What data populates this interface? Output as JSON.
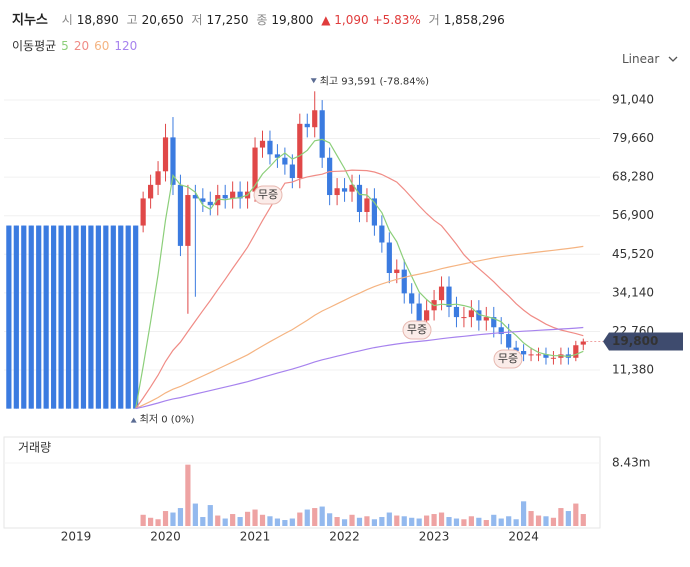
{
  "header": {
    "name": "지누스",
    "items": [
      {
        "label": "시",
        "value": "18,890"
      },
      {
        "label": "고",
        "value": "20,650"
      },
      {
        "label": "저",
        "value": "17,250"
      },
      {
        "label": "종",
        "value": "19,800"
      }
    ],
    "change": "▲ 1,090",
    "change_pct": "+5.83%",
    "volume_label": "거",
    "volume_value": "1,858,296"
  },
  "chart_data": {
    "type": "candlestick",
    "ma_title": "이동평균",
    "scale": "Linear",
    "volume_title": "거래량",
    "up_color": "#e04848",
    "down_color": "#3b7be0",
    "volume_up_color": "#eea3a3",
    "volume_down_color": "#93b9ee",
    "grid": true,
    "high_note": "최고 93,591 (-78.84%)",
    "low_note": "최저 0 (0%)",
    "notes": [
      "무증",
      "무증",
      "무증"
    ],
    "categories": [
      null,
      null,
      null,
      null,
      null,
      null,
      null,
      null,
      null,
      "2019",
      null,
      null,
      null,
      null,
      null,
      null,
      null,
      null,
      null,
      null,
      null,
      "2020",
      null,
      null,
      null,
      null,
      null,
      null,
      null,
      null,
      null,
      null,
      null,
      "2021",
      null,
      null,
      null,
      null,
      null,
      null,
      null,
      null,
      null,
      null,
      null,
      "2022",
      null,
      null,
      null,
      null,
      null,
      null,
      null,
      null,
      null,
      null,
      null,
      "2023",
      null,
      null,
      null,
      null,
      null,
      null,
      null,
      null,
      null,
      null,
      null,
      "2024",
      null,
      null,
      null,
      null,
      null,
      null,
      null,
      null
    ],
    "open": [
      54000,
      54000,
      54000,
      54000,
      54000,
      54000,
      54000,
      54000,
      54000,
      54000,
      54000,
      54000,
      54000,
      54000,
      54000,
      54000,
      54000,
      54000,
      54000,
      62000,
      66000,
      70000,
      80000,
      66000,
      48000,
      63000,
      62000,
      61000,
      60000,
      63000,
      62000,
      64000,
      62000,
      64000,
      77000,
      79000,
      75000,
      74000,
      72000,
      68000,
      84000,
      83000,
      88000,
      74000,
      63000,
      65000,
      64000,
      66000,
      58000,
      62000,
      54000,
      49000,
      40000,
      41000,
      34000,
      31000,
      26000,
      29000,
      32000,
      36000,
      30000,
      27000,
      27000,
      29000,
      26000,
      27000,
      24000,
      22000,
      18000,
      17000,
      16000,
      16000,
      16000,
      15000,
      15000,
      16000,
      15000,
      18890
    ],
    "high": [
      54000,
      54000,
      54000,
      54000,
      54000,
      54000,
      54000,
      54000,
      54000,
      54000,
      54000,
      54000,
      54000,
      54000,
      54000,
      54000,
      54000,
      54000,
      64000,
      69000,
      73000,
      84000,
      86000,
      69000,
      66000,
      66000,
      65000,
      64000,
      66000,
      66000,
      67000,
      67000,
      67000,
      80000,
      82000,
      82000,
      78000,
      77000,
      75000,
      87000,
      87000,
      93591,
      91000,
      77000,
      68000,
      68000,
      69000,
      69000,
      65000,
      65000,
      57000,
      52000,
      44000,
      44000,
      37000,
      34000,
      32000,
      35000,
      39000,
      39000,
      33000,
      30000,
      32000,
      32000,
      30000,
      30000,
      27000,
      25000,
      20000,
      19000,
      18000,
      18000,
      18000,
      17000,
      18000,
      18000,
      20000,
      20650
    ],
    "low": [
      0,
      0,
      0,
      0,
      0,
      0,
      0,
      0,
      0,
      0,
      0,
      0,
      0,
      0,
      0,
      0,
      0,
      0,
      52000,
      59000,
      63000,
      67000,
      63000,
      45000,
      28000,
      33000,
      58000,
      57000,
      57000,
      59000,
      59000,
      59000,
      59000,
      61000,
      74000,
      72000,
      71000,
      69000,
      65000,
      65000,
      80000,
      80000,
      71000,
      60000,
      60000,
      61000,
      61000,
      55000,
      55000,
      51000,
      46000,
      37000,
      37000,
      31000,
      28000,
      23000,
      23000,
      26000,
      29000,
      27000,
      24000,
      24000,
      24000,
      23000,
      23000,
      21000,
      19000,
      15000,
      15000,
      14000,
      14000,
      14000,
      13000,
      13000,
      13000,
      13000,
      14000,
      17250
    ],
    "close": [
      0,
      0,
      0,
      0,
      0,
      0,
      0,
      0,
      0,
      0,
      0,
      0,
      0,
      0,
      0,
      0,
      0,
      0,
      62000,
      66000,
      70000,
      80000,
      66000,
      48000,
      63000,
      62000,
      61000,
      60000,
      63000,
      62000,
      64000,
      62000,
      64000,
      77000,
      79000,
      75000,
      74000,
      72000,
      68000,
      84000,
      83000,
      88000,
      74000,
      63000,
      65000,
      64000,
      66000,
      58000,
      62000,
      54000,
      49000,
      40000,
      41000,
      34000,
      31000,
      26000,
      29000,
      32000,
      36000,
      30000,
      27000,
      27000,
      29000,
      26000,
      27000,
      24000,
      22000,
      18000,
      17000,
      16000,
      16000,
      16000,
      15000,
      15000,
      16000,
      15000,
      18700,
      19800
    ],
    "volume": [
      null,
      null,
      null,
      null,
      null,
      null,
      null,
      null,
      null,
      null,
      null,
      null,
      null,
      null,
      null,
      null,
      null,
      null,
      1500000,
      1100000,
      900000,
      2000000,
      1800000,
      2400000,
      8200000,
      3000000,
      1200000,
      2800000,
      1400000,
      1000000,
      1600000,
      1200000,
      1900000,
      2200000,
      1500000,
      1300000,
      1000000,
      800000,
      1000000,
      1800000,
      2200000,
      2400000,
      2600000,
      1700000,
      1200000,
      900000,
      1500000,
      1100000,
      1300000,
      900000,
      1200000,
      1800000,
      1400000,
      1300000,
      1100000,
      1000000,
      1400000,
      1600000,
      1800000,
      1200000,
      1000000,
      900000,
      1300000,
      1100000,
      800000,
      1500000,
      1000000,
      1300000,
      900000,
      3300000,
      2000000,
      1400000,
      1300000,
      1100000,
      2400000,
      2000000,
      3000000,
      1600000
    ],
    "series": [
      {
        "name": "5",
        "color": "#8ccf7a",
        "values": [
          null,
          null,
          null,
          null,
          null,
          null,
          null,
          null,
          null,
          null,
          null,
          null,
          null,
          null,
          null,
          null,
          null,
          0,
          12400,
          25600,
          39600,
          55600,
          68800,
          66000,
          65400,
          63800,
          60000,
          58800,
          61800,
          61600,
          62000,
          62200,
          63000,
          65800,
          69200,
          71400,
          73800,
          75400,
          73600,
          74600,
          76200,
          79000,
          79400,
          78400,
          74600,
          70800,
          66400,
          63200,
          63000,
          60800,
          57800,
          52600,
          49200,
          43600,
          39000,
          34400,
          32200,
          30400,
          30800,
          30600,
          30800,
          30400,
          29800,
          27800,
          27200,
          26600,
          25600,
          23400,
          21600,
          19400,
          17800,
          16600,
          16000,
          15600,
          15600,
          15400,
          15940,
          16900
        ]
      },
      {
        "name": "20",
        "color": "#f08c86",
        "values": [
          null,
          null,
          null,
          null,
          null,
          null,
          null,
          null,
          null,
          null,
          null,
          null,
          null,
          null,
          null,
          null,
          null,
          0,
          3100,
          6400,
          9900,
          13900,
          17200,
          19600,
          22750,
          25850,
          28900,
          31900,
          35050,
          38150,
          41350,
          44450,
          47650,
          51500,
          55450,
          59200,
          62900,
          66500,
          66800,
          67700,
          68350,
          68750,
          69150,
          69900,
          70000,
          70100,
          70350,
          70250,
          70200,
          69800,
          69050,
          67950,
          66800,
          64650,
          62250,
          59800,
          57550,
          55550,
          53950,
          51250,
          48450,
          45400,
          43150,
          41300,
          39400,
          37400,
          35200,
          33200,
          30950,
          29050,
          27400,
          26200,
          24900,
          23950,
          23200,
          22650,
          22135,
          21525
        ]
      },
      {
        "name": "60",
        "color": "#f5b482",
        "values": [
          null,
          null,
          null,
          null,
          null,
          null,
          null,
          null,
          null,
          null,
          null,
          null,
          null,
          null,
          null,
          null,
          null,
          0,
          1033,
          2133,
          3300,
          4633,
          5733,
          6533,
          7583,
          8617,
          9633,
          10633,
          11683,
          12717,
          13783,
          14817,
          15883,
          17167,
          18483,
          19733,
          20967,
          22167,
          23300,
          24700,
          26083,
          27550,
          28783,
          29833,
          30917,
          31983,
          33083,
          34050,
          35083,
          35983,
          36800,
          37467,
          38150,
          38717,
          39233,
          39667,
          40150,
          40683,
          41283,
          41783,
          42233,
          42683,
          43167,
          43600,
          44050,
          44450,
          44817,
          45117,
          45400,
          45667,
          45933,
          46200,
          46450,
          46700,
          46967,
          47217,
          47528,
          47858
        ]
      },
      {
        "name": "120",
        "color": "#a783ee",
        "values": [
          null,
          null,
          null,
          null,
          null,
          null,
          null,
          null,
          null,
          null,
          null,
          null,
          null,
          null,
          null,
          null,
          null,
          0,
          517,
          1067,
          1650,
          2317,
          2867,
          3267,
          3792,
          4308,
          4817,
          5317,
          5842,
          6358,
          6892,
          7408,
          7942,
          8583,
          9242,
          9867,
          10483,
          11083,
          11650,
          12350,
          13042,
          13775,
          14392,
          14917,
          15458,
          15992,
          16542,
          17025,
          17542,
          17992,
          18400,
          18733,
          19075,
          19358,
          19617,
          19833,
          20075,
          20342,
          20642,
          20892,
          21117,
          21342,
          21583,
          21800,
          22025,
          22225,
          22408,
          22558,
          22700,
          22833,
          22967,
          23100,
          23225,
          23350,
          23483,
          23608,
          23764,
          23929
        ]
      }
    ],
    "ylim": [
      -400,
      98400
    ],
    "yticks": [
      {
        "value": 11380,
        "label": "11,380"
      },
      {
        "value": 22760,
        "label": "22,760"
      },
      {
        "value": 34140,
        "label": "34,140"
      },
      {
        "value": 45520,
        "label": "45,520"
      },
      {
        "value": 56900,
        "label": "56,900"
      },
      {
        "value": 68280,
        "label": "68,280"
      },
      {
        "value": 79660,
        "label": "79,660"
      },
      {
        "value": 91040,
        "label": "91,040"
      }
    ],
    "volume_ylim": [
      0,
      11900000
    ],
    "volume_yticks": [
      {
        "value": 8430000,
        "label": "8.43m"
      }
    ]
  }
}
